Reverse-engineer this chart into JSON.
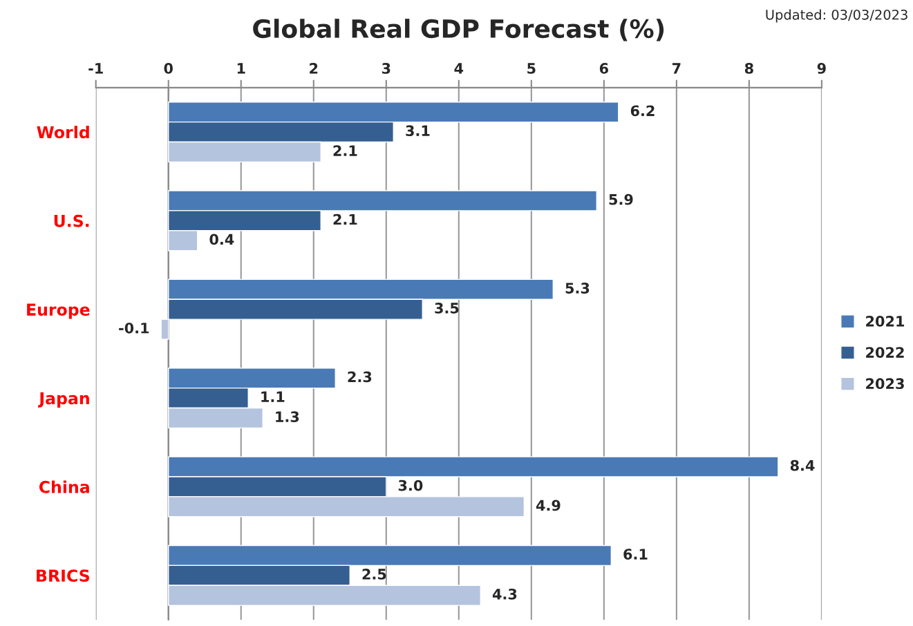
{
  "chart_data": {
    "type": "bar",
    "orientation": "horizontal",
    "title": "Global Real GDP Forecast (%)",
    "annotations": [
      "Updated: 03/03/2023"
    ],
    "categories": [
      "World",
      "U.S.",
      "Europe",
      "Japan",
      "China",
      "BRICS"
    ],
    "series": [
      {
        "name": "2021",
        "color": "#4a7ab5",
        "values": [
          6.2,
          5.9,
          5.3,
          2.3,
          8.4,
          6.1
        ],
        "value_labels": [
          "6.2",
          "5.9",
          "5.3",
          "2.3",
          "8.4",
          "6.1"
        ]
      },
      {
        "name": "2022",
        "color": "#355f91",
        "values": [
          3.1,
          2.1,
          3.5,
          1.1,
          3.0,
          2.5
        ],
        "value_labels": [
          "3.1",
          "2.1",
          "3.5",
          "1.1",
          "3.0",
          "2.5"
        ]
      },
      {
        "name": "2023",
        "color": "#b4c3de",
        "values": [
          2.1,
          0.4,
          -0.1,
          1.3,
          4.9,
          4.3
        ],
        "value_labels": [
          "2.1",
          "0.4",
          "-0.1",
          "1.3",
          "4.9",
          "4.3"
        ]
      }
    ],
    "xlim": [
      -1,
      9
    ],
    "xticks": [
      -1,
      0,
      1,
      2,
      3,
      4,
      5,
      6,
      7,
      8,
      9
    ],
    "grid": "x",
    "legend": "right"
  }
}
